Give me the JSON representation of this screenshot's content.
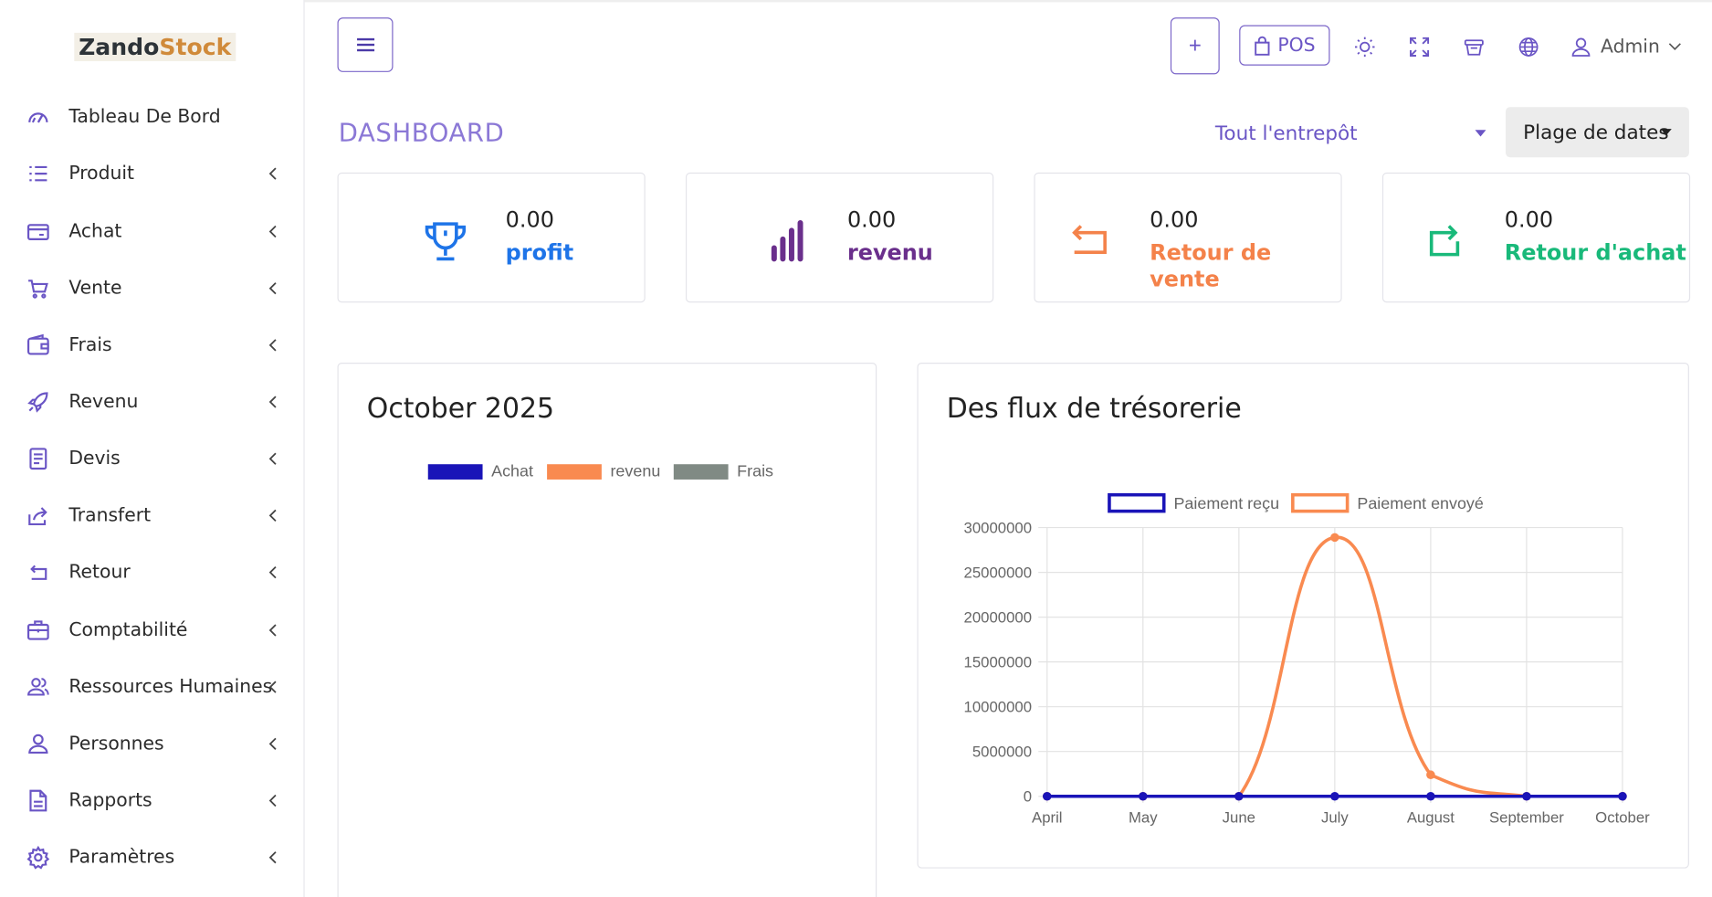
{
  "brand": {
    "part1": "Zando",
    "part2": "Stock"
  },
  "sidebar": {
    "items": [
      {
        "label": "Tableau De Bord",
        "icon": "gauge-icon",
        "has_submenu": false
      },
      {
        "label": "Produit",
        "icon": "list-icon",
        "has_submenu": true
      },
      {
        "label": "Achat",
        "icon": "credit-card-icon",
        "has_submenu": true
      },
      {
        "label": "Vente",
        "icon": "cart-icon",
        "has_submenu": true
      },
      {
        "label": "Frais",
        "icon": "wallet-icon",
        "has_submenu": true
      },
      {
        "label": "Revenu",
        "icon": "rocket-icon",
        "has_submenu": true
      },
      {
        "label": "Devis",
        "icon": "document-icon",
        "has_submenu": true
      },
      {
        "label": "Transfert",
        "icon": "share-icon",
        "has_submenu": true
      },
      {
        "label": "Retour",
        "icon": "return-arrow-icon",
        "has_submenu": true
      },
      {
        "label": "Comptabilité",
        "icon": "briefcase-icon",
        "has_submenu": true
      },
      {
        "label": "Ressources Humaines",
        "icon": "users-icon",
        "has_submenu": true
      },
      {
        "label": "Personnes",
        "icon": "user-icon",
        "has_submenu": true
      },
      {
        "label": "Rapports",
        "icon": "file-icon",
        "has_submenu": true
      },
      {
        "label": "Paramètres",
        "icon": "gear-icon",
        "has_submenu": true
      }
    ]
  },
  "header": {
    "plus_label": "+",
    "pos_label": "POS",
    "admin_label": "Admin",
    "icons": [
      "sun-icon",
      "fullscreen-icon",
      "basket-icon",
      "globe-icon"
    ]
  },
  "page": {
    "title": "DASHBOARD",
    "warehouse_select": "Tout l'entrepôt",
    "date_range_label": "Plage de dates"
  },
  "stats": [
    {
      "value": "0.00",
      "label": "profit",
      "color": "#1e74e8",
      "icon": "trophy-icon"
    },
    {
      "value": "0.00",
      "label": "revenu",
      "color": "#6a2f8c",
      "icon": "bar-chart-icon"
    },
    {
      "value": "0.00",
      "label": "Retour de vente",
      "color": "#f4824a",
      "icon": "return-left-icon"
    },
    {
      "value": "0.00",
      "label": "Retour d'achat",
      "color": "#19b97a",
      "icon": "return-right-icon"
    }
  ],
  "panels": {
    "monthly": {
      "title": "October 2025",
      "legend": [
        {
          "name": "Achat",
          "color": "#1a14b8"
        },
        {
          "name": "revenu",
          "color": "#f98a50"
        },
        {
          "name": "Frais",
          "color": "#808a84"
        }
      ]
    },
    "cashflow": {
      "title": "Des flux de trésorerie"
    }
  },
  "chart_data": {
    "type": "line",
    "title": "Des flux de trésorerie",
    "categories": [
      "April",
      "May",
      "June",
      "July",
      "August",
      "September",
      "October"
    ],
    "series": [
      {
        "name": "Paiement reçu",
        "color": "#1a14b8",
        "values": [
          0,
          0,
          0,
          0,
          0,
          0,
          0
        ]
      },
      {
        "name": "Paiement envoyé",
        "color": "#f98a50",
        "values": [
          0,
          0,
          0,
          28900000,
          2400000,
          0,
          0
        ]
      }
    ],
    "ylim": [
      0,
      30000000
    ],
    "yticks": [
      0,
      5000000,
      10000000,
      15000000,
      20000000,
      25000000,
      30000000
    ],
    "grid": true,
    "legend_position": "top"
  }
}
